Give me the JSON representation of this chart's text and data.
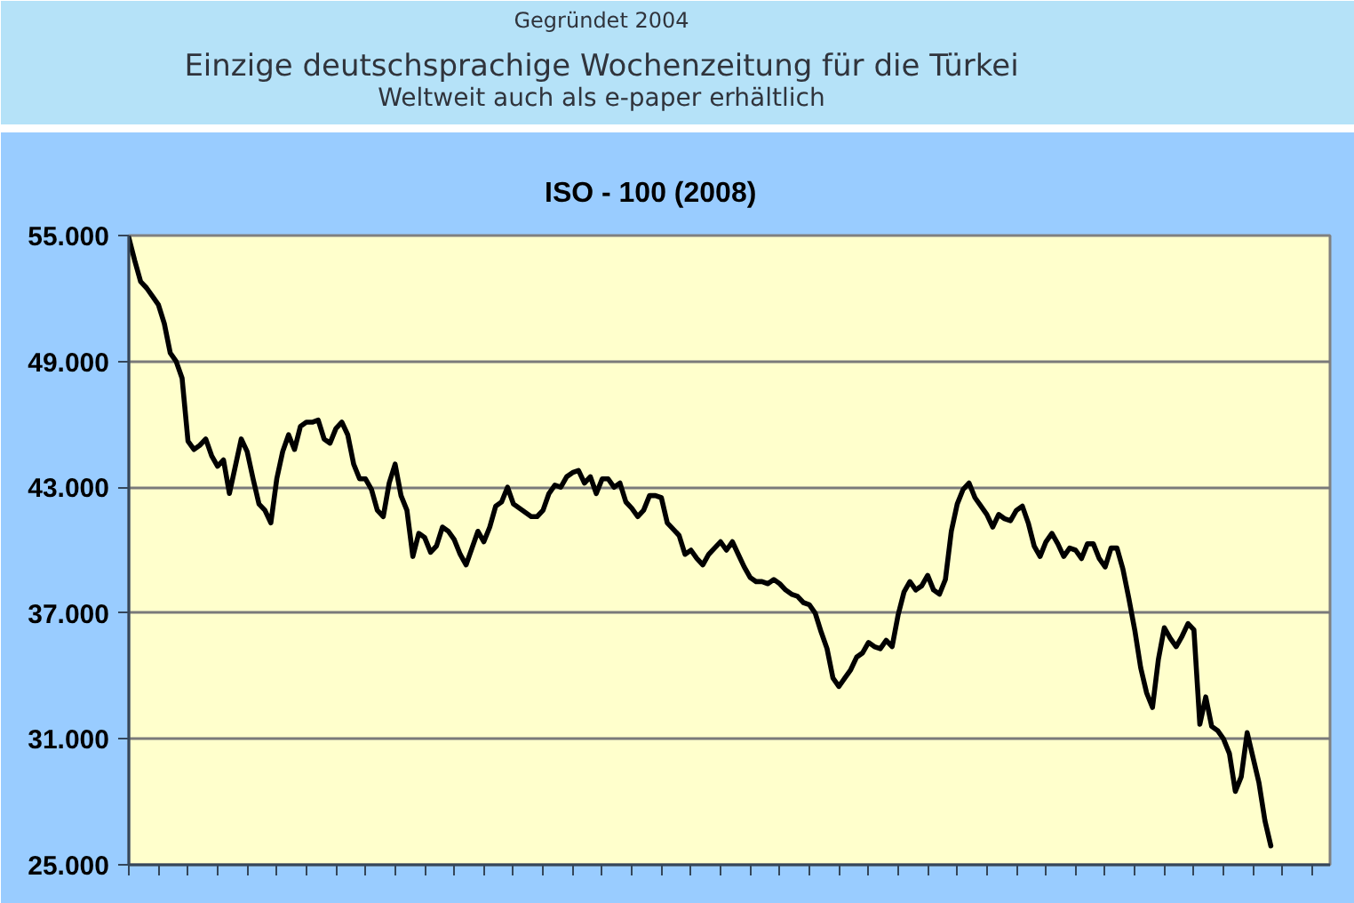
{
  "chart_data": {
    "type": "line",
    "title": "ISO - 100  (2008)",
    "annotations": [
      "Gegründet 2004",
      "Einzige deutschsprachige Wochenzeitung für die Türkei",
      "Weltweit auch als e-paper erhältlich"
    ],
    "categories": [
      null,
      null,
      null,
      null,
      null,
      null,
      null,
      null,
      null,
      null,
      null,
      null,
      null,
      null,
      null,
      null,
      null,
      null,
      null,
      null,
      null,
      null,
      null,
      null,
      null,
      null,
      null,
      null,
      null,
      null,
      null,
      null,
      null,
      null,
      null,
      null,
      null,
      null,
      null,
      null,
      null,
      null,
      null,
      null,
      null,
      null,
      null,
      null,
      null,
      null,
      null,
      null,
      null,
      null,
      null,
      null,
      null,
      null,
      null,
      null,
      null,
      null,
      null,
      null,
      null,
      null,
      null,
      null,
      null,
      null,
      null,
      null,
      null,
      null,
      null,
      null,
      null,
      null,
      null,
      null,
      null,
      null,
      null,
      null,
      null,
      null,
      null,
      null,
      null,
      null,
      null,
      null,
      null,
      null,
      null,
      null,
      null,
      null,
      null,
      null,
      null,
      null,
      null,
      null,
      null,
      null,
      null,
      null,
      null,
      null,
      null,
      null,
      null,
      null,
      null,
      null,
      null,
      null,
      null,
      null,
      null,
      null,
      null,
      null,
      null,
      null,
      null,
      null,
      null,
      null,
      null,
      null,
      null,
      null,
      null,
      null,
      null,
      null,
      null,
      null,
      null,
      null,
      null,
      null,
      null,
      null,
      null,
      null,
      null,
      null,
      null,
      null,
      null,
      null,
      null,
      null,
      null,
      null,
      null,
      null,
      null,
      null,
      null,
      null,
      null,
      null,
      null,
      null,
      null,
      null,
      null,
      null,
      null,
      null,
      null,
      null,
      null,
      null,
      null,
      null,
      null,
      null,
      null,
      null,
      null,
      null,
      null,
      null,
      null,
      null,
      null,
      null,
      null,
      null,
      null,
      null,
      null,
      null,
      null,
      null,
      null,
      null,
      null,
      null
    ],
    "values": [
      54900,
      53800,
      52800,
      52500,
      52100,
      51700,
      50800,
      49400,
      49000,
      48200,
      45200,
      44800,
      45000,
      45300,
      44500,
      44000,
      44300,
      42700,
      44000,
      45300,
      44700,
      43400,
      42200,
      41900,
      41300,
      43400,
      44700,
      45500,
      44800,
      45900,
      46100,
      46100,
      46200,
      45300,
      45100,
      45800,
      46100,
      45500,
      44100,
      43400,
      43400,
      42900,
      41900,
      41600,
      43200,
      44100,
      42600,
      41900,
      39700,
      40800,
      40600,
      39900,
      40200,
      41100,
      40900,
      40500,
      39800,
      39300,
      40100,
      40900,
      40400,
      41100,
      42100,
      42300,
      43000,
      42200,
      42000,
      41800,
      41600,
      41600,
      41900,
      42700,
      43100,
      43000,
      43500,
      43700,
      43800,
      43200,
      43500,
      42700,
      43400,
      43400,
      43000,
      43200,
      42300,
      42000,
      41600,
      41900,
      42600,
      42600,
      42500,
      41300,
      41000,
      40700,
      39800,
      40000,
      39600,
      39300,
      39800,
      40100,
      40400,
      40000,
      40400,
      39800,
      39200,
      38700,
      38500,
      38500,
      38400,
      38600,
      38400,
      38100,
      37900,
      37800,
      37500,
      37400,
      37000,
      36100,
      35300,
      33900,
      33500,
      33900,
      34300,
      34900,
      35100,
      35600,
      35400,
      35300,
      35700,
      35400,
      36900,
      38000,
      38500,
      38100,
      38300,
      38800,
      38100,
      37900,
      38600,
      40900,
      42200,
      42900,
      43200,
      42500,
      42100,
      41700,
      41100,
      41700,
      41500,
      41400,
      41900,
      42100,
      41300,
      40200,
      39700,
      40400,
      40800,
      40300,
      39700,
      40100,
      40000,
      39600,
      40300,
      40300,
      39600,
      39200,
      40100,
      40100,
      39100,
      37700,
      36200,
      34400,
      33200,
      32500,
      34800,
      36300,
      35800,
      35400,
      35900,
      36500,
      36200,
      31700,
      33000,
      31600,
      31400,
      31000,
      30300,
      28500,
      29200,
      31300,
      30100,
      28900,
      27100,
      25900,
      null,
      null,
      null,
      null,
      null,
      null,
      null,
      null,
      null,
      null
    ],
    "color": "#000000",
    "line_style": "solid",
    "ylim": [
      25000,
      55000
    ],
    "yticks": [
      {
        "value": 25000,
        "label": "25.000"
      },
      {
        "value": 31000,
        "label": "31.000"
      },
      {
        "value": 37000,
        "label": "37.000"
      },
      {
        "value": 43000,
        "label": "43.000"
      },
      {
        "value": 49000,
        "label": "49.000"
      },
      {
        "value": 55000,
        "label": "55.000"
      }
    ],
    "grid": "y",
    "tick_labels": "y"
  }
}
